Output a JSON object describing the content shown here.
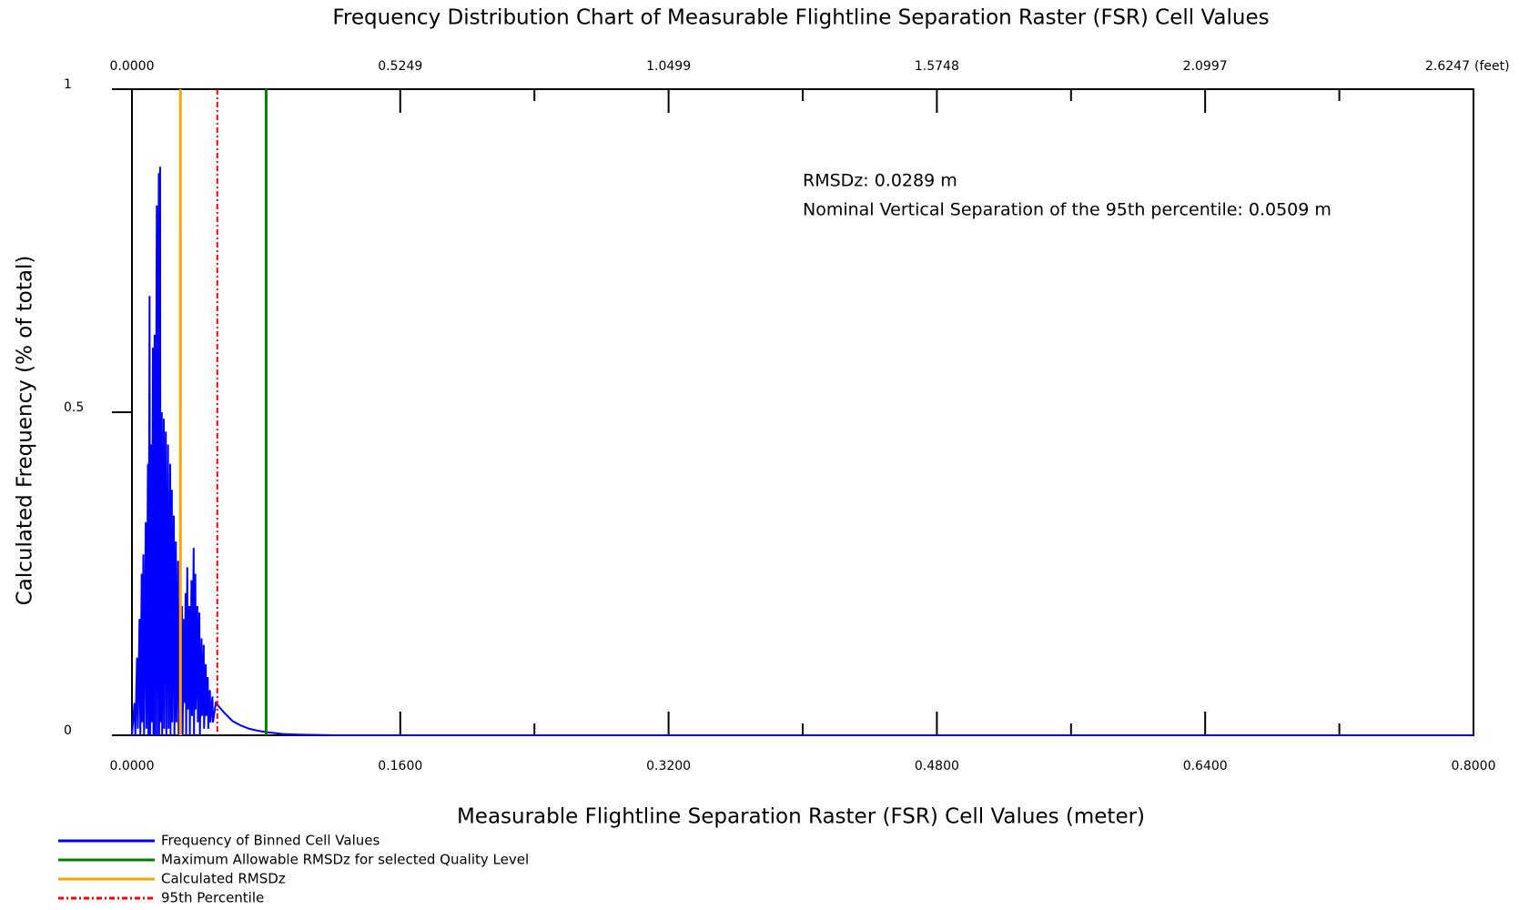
{
  "chart_data": {
    "type": "line",
    "title": "Frequency Distribution Chart of Measurable Flightline Separation Raster (FSR) Cell Values",
    "x_label": "Measurable Flightline Separation Raster (FSR) Cell Values (meter)",
    "y_label": "Calculated Frequency (% of total)",
    "xlim": [
      0,
      0.8
    ],
    "xticks": [
      {
        "value": 0,
        "label": "0.0000"
      },
      {
        "value": 0.16,
        "label": "0.1600"
      },
      {
        "value": 0.32,
        "label": "0.3200"
      },
      {
        "value": 0.48,
        "label": "0.4800"
      },
      {
        "value": 0.64,
        "label": "0.6400"
      },
      {
        "value": 0.8,
        "label": "0.8000"
      }
    ],
    "xminor_ticks": [
      0.08,
      0.24,
      0.4,
      0.56,
      0.72
    ],
    "x2lim": [
      0,
      2.6247
    ],
    "x2ticks": [
      {
        "value": 0,
        "label": "0.0000"
      },
      {
        "value": 0.5249,
        "label": "0.5249"
      },
      {
        "value": 1.0499,
        "label": "1.0499"
      },
      {
        "value": 1.5748,
        "label": "1.5748"
      },
      {
        "value": 2.0997,
        "label": "2.0997"
      },
      {
        "value": 2.6247,
        "label": "2.6247"
      }
    ],
    "x2_unit": "(feet)",
    "ylim": [
      0,
      1
    ],
    "yticks": [
      0,
      0.5,
      1
    ],
    "annotations": [
      "RMSDz: 0.0289 m",
      "Nominal Vertical Separation of the 95th percentile: 0.0509 m"
    ],
    "series": [
      {
        "name": "Frequency of Binned Cell Values",
        "color": "#0000ff",
        "x": [
          0,
          0.0015,
          0.002,
          0.003,
          0.0035,
          0.0045,
          0.005,
          0.0058,
          0.0062,
          0.0068,
          0.0072,
          0.0082,
          0.0086,
          0.0095,
          0.0098,
          0.0105,
          0.0108,
          0.0115,
          0.0118,
          0.0125,
          0.0128,
          0.0135,
          0.0138,
          0.0148,
          0.015,
          0.016,
          0.0162,
          0.0168,
          0.017,
          0.0178,
          0.018,
          0.019,
          0.0192,
          0.0202,
          0.0205,
          0.0215,
          0.0218,
          0.0228,
          0.023,
          0.0238,
          0.024,
          0.025,
          0.0253,
          0.0262,
          0.0265,
          0.0275,
          0.0278,
          0.0288,
          0.029,
          0.0298,
          0.0302,
          0.031,
          0.0313,
          0.032,
          0.0323,
          0.033,
          0.0333,
          0.0342,
          0.0345,
          0.0355,
          0.0358,
          0.0368,
          0.037,
          0.0378,
          0.038,
          0.039,
          0.0393,
          0.0402,
          0.0405,
          0.0415,
          0.0418,
          0.0428,
          0.043,
          0.044,
          0.0443,
          0.0452,
          0.0455,
          0.0465,
          0.0468,
          0.048,
          0.0483,
          0.05,
          0.055,
          0.06,
          0.065,
          0.07,
          0.075,
          0.08,
          0.09,
          0.1,
          0.12,
          0.8
        ],
        "values": [
          0,
          0.05,
          0,
          0.12,
          0.01,
          0.18,
          0,
          0.25,
          0.02,
          0.28,
          0,
          0.33,
          0.01,
          0.42,
          0,
          0.68,
          0,
          0.45,
          0.02,
          0.6,
          0,
          0.62,
          0,
          0.82,
          0,
          0.87,
          0,
          0.88,
          0.02,
          0.5,
          0,
          0.49,
          0.01,
          0.47,
          0,
          0.45,
          0.01,
          0.42,
          0,
          0.38,
          0.02,
          0.34,
          0,
          0.3,
          0.02,
          0.27,
          0,
          0.22,
          0.03,
          0.2,
          0,
          0.18,
          0.05,
          0.22,
          0,
          0.26,
          0.04,
          0.2,
          0,
          0.24,
          0.03,
          0.29,
          0,
          0.25,
          0.04,
          0.2,
          0.02,
          0.19,
          0,
          0.15,
          0.03,
          0.14,
          0.01,
          0.11,
          0.03,
          0.09,
          0.01,
          0.07,
          0.02,
          0.06,
          0.02,
          0.05,
          0.035,
          0.022,
          0.015,
          0.01,
          0.007,
          0.005,
          0.002,
          0.001,
          0,
          0
        ]
      }
    ],
    "vlines": [
      {
        "name": "Maximum Allowable RMSDz for selected Quality Level",
        "color": "#008000",
        "x": 0.08,
        "dash": "solid"
      },
      {
        "name": "Calculated RMSDz",
        "color": "#ffa500",
        "x": 0.0289,
        "dash": "solid"
      },
      {
        "name": "95th Percentile",
        "color": "#ff0000",
        "x": 0.0509,
        "dash": "dashdot"
      }
    ]
  }
}
